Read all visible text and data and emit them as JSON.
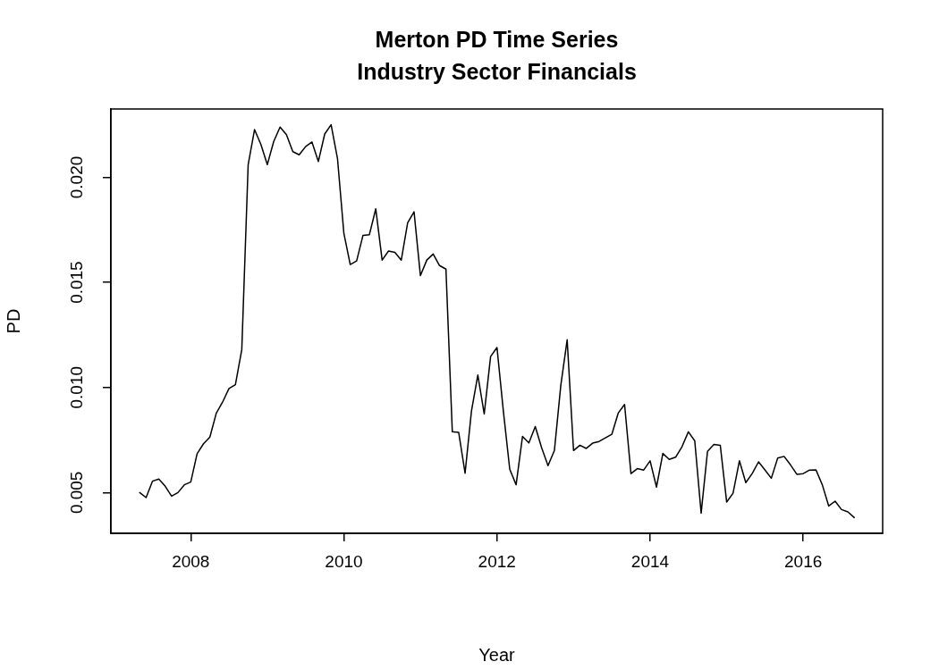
{
  "chart_data": {
    "type": "line",
    "title": "Merton PD Time Series",
    "subtitle": "Industry Sector Financials",
    "xlabel": "Year",
    "ylabel": "PD",
    "x": [
      "2007-05",
      "2007-06",
      "2007-07",
      "2007-08",
      "2007-09",
      "2007-10",
      "2007-11",
      "2007-12",
      "2008-01",
      "2008-02",
      "2008-03",
      "2008-04",
      "2008-05",
      "2008-06",
      "2008-07",
      "2008-08",
      "2008-09",
      "2008-10",
      "2008-11",
      "2008-12",
      "2009-01",
      "2009-02",
      "2009-03",
      "2009-04",
      "2009-05",
      "2009-06",
      "2009-07",
      "2009-08",
      "2009-09",
      "2009-10",
      "2009-11",
      "2009-12",
      "2010-01",
      "2010-02",
      "2010-03",
      "2010-04",
      "2010-05",
      "2010-06",
      "2010-07",
      "2010-08",
      "2010-09",
      "2010-10",
      "2010-11",
      "2010-12",
      "2011-01",
      "2011-02",
      "2011-03",
      "2011-04",
      "2011-05",
      "2011-06",
      "2011-07",
      "2011-08",
      "2011-09",
      "2011-10",
      "2011-11",
      "2011-12",
      "2012-01",
      "2012-02",
      "2012-03",
      "2012-04",
      "2012-05",
      "2012-06",
      "2012-07",
      "2012-08",
      "2012-09",
      "2012-10",
      "2012-11",
      "2012-12",
      "2013-01",
      "2013-02",
      "2013-03",
      "2013-04",
      "2013-05",
      "2013-06",
      "2013-07",
      "2013-08",
      "2013-09",
      "2013-10",
      "2013-11",
      "2013-12",
      "2014-01",
      "2014-02",
      "2014-03",
      "2014-04",
      "2014-05",
      "2014-06",
      "2014-07",
      "2014-08",
      "2014-09",
      "2014-10",
      "2014-11",
      "2014-12",
      "2015-01",
      "2015-02",
      "2015-03",
      "2015-04",
      "2015-05",
      "2015-06",
      "2015-07",
      "2015-08",
      "2015-09",
      "2015-10",
      "2015-11",
      "2015-12",
      "2016-01",
      "2016-02",
      "2016-03",
      "2016-04",
      "2016-05",
      "2016-06",
      "2016-07",
      "2016-08",
      "2016-09"
    ],
    "series": [
      {
        "color": "#000000",
        "values": [
          0.005,
          0.00476,
          0.00554,
          0.00564,
          0.0053,
          0.00483,
          0.005,
          0.00537,
          0.0055,
          0.00685,
          0.00732,
          0.00764,
          0.00877,
          0.00931,
          0.00995,
          0.01013,
          0.0118,
          0.0206,
          0.02227,
          0.02156,
          0.0206,
          0.0217,
          0.02239,
          0.02203,
          0.02122,
          0.02107,
          0.02146,
          0.02168,
          0.02075,
          0.02206,
          0.0225,
          0.0209,
          0.01734,
          0.01585,
          0.01602,
          0.01724,
          0.01727,
          0.0185,
          0.01606,
          0.01649,
          0.01643,
          0.01606,
          0.01784,
          0.01836,
          0.01532,
          0.01606,
          0.01635,
          0.0158,
          0.01563,
          0.00789,
          0.00786,
          0.00592,
          0.00888,
          0.01059,
          0.00874,
          0.01147,
          0.0119,
          0.00888,
          0.00611,
          0.00537,
          0.00767,
          0.00736,
          0.00814,
          0.00713,
          0.00628,
          0.007,
          0.01009,
          0.01227,
          0.007,
          0.00725,
          0.0071,
          0.00735,
          0.00743,
          0.0076,
          0.00777,
          0.00878,
          0.00919,
          0.0059,
          0.00614,
          0.00607,
          0.00651,
          0.00526,
          0.00686,
          0.00658,
          0.00668,
          0.00718,
          0.00789,
          0.00746,
          0.00402,
          0.00696,
          0.00729,
          0.00725,
          0.00455,
          0.00497,
          0.00651,
          0.00547,
          0.0059,
          0.00646,
          0.00608,
          0.00568,
          0.00664,
          0.00672,
          0.00632,
          0.00587,
          0.0059,
          0.00607,
          0.00608,
          0.00536,
          0.00436,
          0.00459,
          0.00419,
          0.00408,
          0.00381
        ]
      }
    ],
    "xlim": [
      "2006-12-16",
      "2017-01-15"
    ],
    "xticks": [
      {
        "value": "2008",
        "label": "2008"
      },
      {
        "value": "2010",
        "label": "2010"
      },
      {
        "value": "2012",
        "label": "2012"
      },
      {
        "value": "2014",
        "label": "2014"
      },
      {
        "value": "2016",
        "label": "2016"
      }
    ],
    "ylim": [
      0.00306,
      0.02325
    ],
    "yticks": [
      {
        "value": 0.005,
        "label": "0.005"
      },
      {
        "value": 0.01,
        "label": "0.010"
      },
      {
        "value": 0.015,
        "label": "0.015"
      },
      {
        "value": 0.02,
        "label": "0.020"
      }
    ],
    "grid": false,
    "legend": false,
    "marker": "none",
    "line_style": "solid"
  }
}
